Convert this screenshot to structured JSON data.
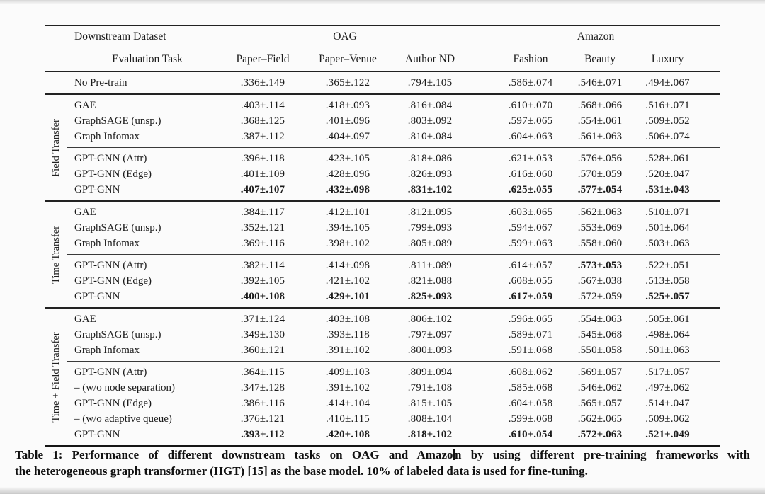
{
  "colors": {
    "background": "#fbfbfb",
    "rule": "#222222",
    "ink": "#1b1b1b"
  },
  "table": {
    "header": {
      "downstream_dataset_label": "Downstream Dataset",
      "evaluation_task_label": "Evaluation Task",
      "groups": [
        {
          "label": "OAG",
          "columns": [
            "Paper–Field",
            "Paper–Venue",
            "Author ND"
          ]
        },
        {
          "label": "Amazon",
          "columns": [
            "Fashion",
            "Beauty",
            "Luxury"
          ]
        }
      ]
    },
    "no_pretrain": {
      "label": "No Pre-train",
      "values": [
        ".336±.149",
        ".365±.122",
        ".794±.105",
        ".586±.074",
        ".546±.071",
        ".494±.067"
      ]
    },
    "sections": [
      {
        "label": "Field Transfer",
        "rows": [
          {
            "label": "GAE",
            "values": [
              ".403±.114",
              ".418±.093",
              ".816±.084",
              ".610±.070",
              ".568±.066",
              ".516±.071"
            ]
          },
          {
            "label": "GraphSAGE (unsp.)",
            "values": [
              ".368±.125",
              ".401±.096",
              ".803±.092",
              ".597±.065",
              ".554±.061",
              ".509±.052"
            ]
          },
          {
            "label": "Graph Infomax",
            "values": [
              ".387±.112",
              ".404±.097",
              ".810±.084",
              ".604±.063",
              ".561±.063",
              ".506±.074"
            ]
          },
          {
            "label": "GPT-GNN (Attr)",
            "rule_above": true,
            "values": [
              ".396±.118",
              ".423±.105",
              ".818±.086",
              ".621±.053",
              ".576±.056",
              ".528±.061"
            ]
          },
          {
            "label": "GPT-GNN (Edge)",
            "values": [
              ".401±.109",
              ".428±.096",
              ".826±.093",
              ".616±.060",
              ".570±.059",
              ".520±.047"
            ]
          },
          {
            "label": "GPT-GNN",
            "values": [
              ".407±.107",
              ".432±.098",
              ".831±.102",
              ".625±.055",
              ".577±.054",
              ".531±.043"
            ],
            "bold": [
              1,
              1,
              1,
              1,
              1,
              1
            ]
          }
        ]
      },
      {
        "label": "Time Transfer",
        "rows": [
          {
            "label": "GAE",
            "values": [
              ".384±.117",
              ".412±.101",
              ".812±.095",
              ".603±.065",
              ".562±.063",
              ".510±.071"
            ]
          },
          {
            "label": "GraphSAGE (unsp.)",
            "values": [
              ".352±.121",
              ".394±.105",
              ".799±.093",
              ".594±.067",
              ".553±.069",
              ".501±.064"
            ]
          },
          {
            "label": "Graph Infomax",
            "values": [
              ".369±.116",
              ".398±.102",
              ".805±.089",
              ".599±.063",
              ".558±.060",
              ".503±.063"
            ]
          },
          {
            "label": "GPT-GNN (Attr)",
            "rule_above": true,
            "values": [
              ".382±.114",
              ".414±.098",
              ".811±.089",
              ".614±.057",
              ".573±.053",
              ".522±.051"
            ],
            "bold": [
              0,
              0,
              0,
              0,
              1,
              0
            ]
          },
          {
            "label": "GPT-GNN (Edge)",
            "values": [
              ".392±.105",
              ".421±.102",
              ".821±.088",
              ".608±.055",
              ".567±.038",
              ".513±.058"
            ]
          },
          {
            "label": "GPT-GNN",
            "values": [
              ".400±.108",
              ".429±.101",
              ".825±.093",
              ".617±.059",
              ".572±.059",
              ".525±.057"
            ],
            "bold": [
              1,
              1,
              1,
              1,
              0,
              1
            ]
          }
        ]
      },
      {
        "label": "Time + Field Transfer",
        "rows": [
          {
            "label": "GAE",
            "values": [
              ".371±.124",
              ".403±.108",
              ".806±.102",
              ".596±.065",
              ".554±.063",
              ".505±.061"
            ]
          },
          {
            "label": "GraphSAGE (unsp.)",
            "values": [
              ".349±.130",
              ".393±.118",
              ".797±.097",
              ".589±.071",
              ".545±.068",
              ".498±.064"
            ]
          },
          {
            "label": "Graph Infomax",
            "values": [
              ".360±.121",
              ".391±.102",
              ".800±.093",
              ".591±.068",
              ".550±.058",
              ".501±.063"
            ]
          },
          {
            "label": "GPT-GNN (Attr)",
            "rule_above": true,
            "values": [
              ".364±.115",
              ".409±.103",
              ".809±.094",
              ".608±.062",
              ".569±.057",
              ".517±.057"
            ]
          },
          {
            "label": "– (w/o node separation)",
            "values": [
              ".347±.128",
              ".391±.102",
              ".791±.108",
              ".585±.068",
              ".546±.062",
              ".497±.062"
            ]
          },
          {
            "label": "GPT-GNN (Edge)",
            "values": [
              ".386±.116",
              ".414±.104",
              ".815±.105",
              ".604±.058",
              ".565±.057",
              ".514±.047"
            ]
          },
          {
            "label": "– (w/o adaptive queue)",
            "values": [
              ".376±.121",
              ".410±.115",
              ".808±.104",
              ".599±.068",
              ".562±.065",
              ".509±.062"
            ]
          },
          {
            "label": "GPT-GNN",
            "values": [
              ".393±.112",
              ".420±.108",
              ".818±.102",
              ".610±.054",
              ".572±.063",
              ".521±.049"
            ],
            "bold": [
              1,
              1,
              1,
              1,
              1,
              1
            ]
          }
        ]
      }
    ]
  },
  "caption": {
    "line1_before_caret": "Table 1: Performance of different downstream tasks on OAG and Amazo",
    "line1_after_caret": "n by using different pre-training frameworks with",
    "line2": "the heterogeneous graph transformer (HGT) [15] as the base model. 10% of labeled data is used for fine-tuning."
  }
}
